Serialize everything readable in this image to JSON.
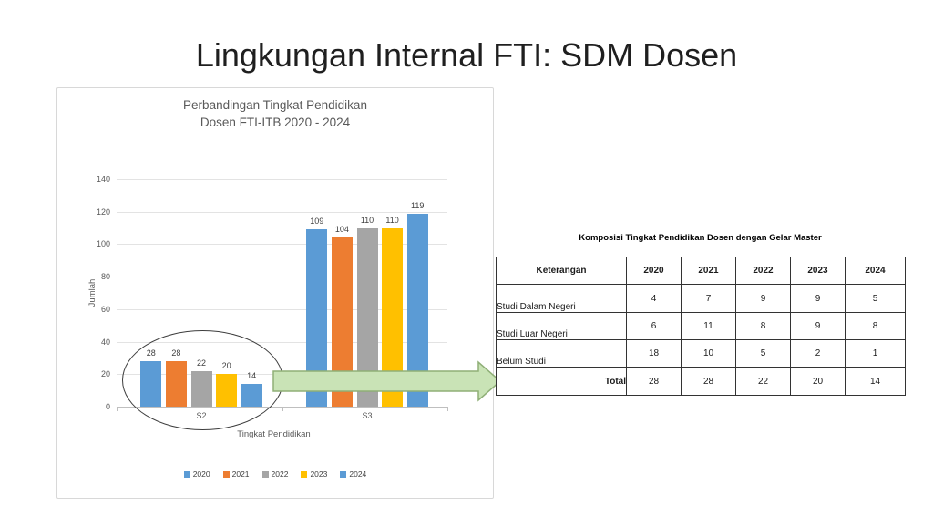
{
  "slide": {
    "title": "Lingkungan Internal FTI: SDM Dosen"
  },
  "chart_data": {
    "type": "bar",
    "title": [
      "Perbandingan Tingkat Pendidikan",
      "Dosen FTI-ITB 2020 - 2024"
    ],
    "categories": [
      "S2",
      "S3"
    ],
    "series": [
      {
        "name": "2020",
        "color": "#5B9BD5",
        "values": [
          28,
          109
        ]
      },
      {
        "name": "2021",
        "color": "#ED7D31",
        "values": [
          28,
          104
        ]
      },
      {
        "name": "2022",
        "color": "#A5A5A5",
        "values": [
          22,
          110
        ]
      },
      {
        "name": "2023",
        "color": "#FFC000",
        "values": [
          20,
          110
        ]
      },
      {
        "name": "2024",
        "color": "#5B9BD5",
        "values": [
          14,
          119
        ]
      }
    ],
    "xlabel": "Tingkat Pendidikan",
    "ylabel": "Jumlah",
    "ylim": [
      0,
      140
    ],
    "ytick_step": 20,
    "grid": true,
    "data_labels": true,
    "legend_position": "bottom",
    "annotation": "ellipse highlight around S2 group with arrow pointing to table"
  },
  "table": {
    "title": "Komposisi Tingkat Pendidikan Dosen dengan Gelar Master",
    "columns": [
      "Keterangan",
      "2020",
      "2021",
      "2022",
      "2023",
      "2024"
    ],
    "rows": [
      {
        "label": "Studi Dalam Negeri",
        "values": [
          "4",
          "7",
          "9",
          "9",
          "5"
        ]
      },
      {
        "label": "Studi Luar Negeri",
        "values": [
          "6",
          "11",
          "8",
          "9",
          "8"
        ]
      },
      {
        "label": "Belum Studi",
        "values": [
          "18",
          "10",
          "5",
          "2",
          "1"
        ]
      }
    ],
    "total": {
      "label": "Total",
      "values": [
        "28",
        "28",
        "22",
        "20",
        "14"
      ]
    }
  },
  "colors": {
    "arrow_fill": "#C9E3B6",
    "arrow_stroke": "#8FAF77",
    "highlight_outline": "#3D3D3D"
  }
}
